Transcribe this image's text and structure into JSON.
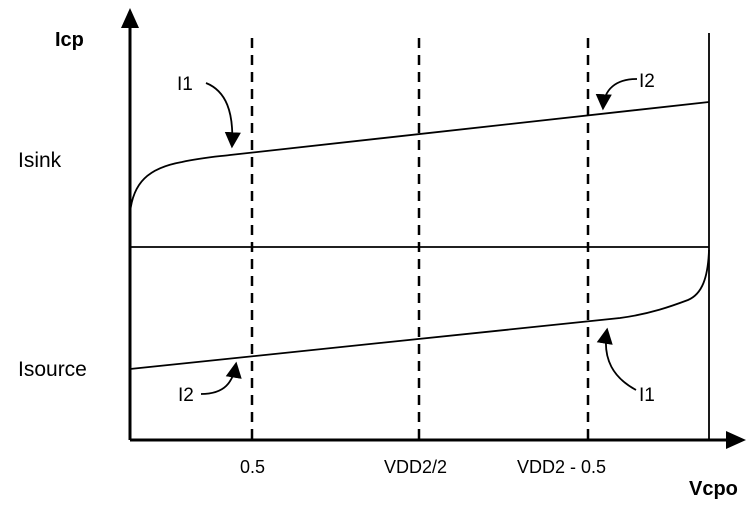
{
  "y_axis": {
    "title": "Icp"
  },
  "x_axis": {
    "title": "Vcpo"
  },
  "levels": {
    "upper": "Isink",
    "lower": "Isource"
  },
  "ticks": [
    {
      "id": "tick-0-5",
      "label": "0.5"
    },
    {
      "id": "tick-vdd2-half",
      "label": "VDD2/2"
    },
    {
      "id": "tick-vdd2-minus",
      "label": "VDD2 - 0.5"
    }
  ],
  "curves": {
    "sink_i1": "I1",
    "sink_i2": "I2",
    "source_i2": "I2",
    "source_i1": "I1"
  },
  "colors": {
    "line": "#000000",
    "background": "#ffffff"
  }
}
